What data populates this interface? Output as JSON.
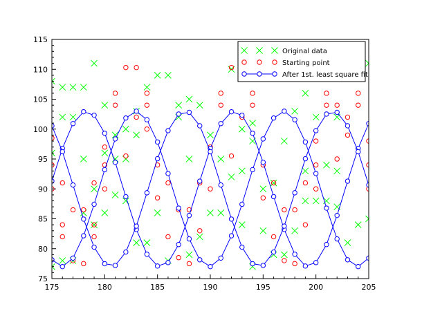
{
  "chart_data": {
    "type": "scatter",
    "xlim": [
      175,
      205
    ],
    "ylim": [
      75,
      115
    ],
    "x_ticks": [
      175,
      180,
      185,
      190,
      195,
      200,
      205
    ],
    "y_ticks": [
      75,
      80,
      85,
      90,
      95,
      100,
      105,
      110,
      115
    ],
    "grid": false,
    "legend_position": "top-right",
    "series": [
      {
        "name": "Original data",
        "marker": "cross",
        "color": "#00ff00",
        "points": [
          [
            175,
            77
          ],
          [
            175,
            96
          ],
          [
            175,
            108
          ],
          [
            176,
            102
          ],
          [
            176,
            107
          ],
          [
            176,
            78
          ],
          [
            177,
            102
          ],
          [
            177,
            107
          ],
          [
            177,
            78
          ],
          [
            178,
            107
          ],
          [
            178,
            95
          ],
          [
            178,
            86
          ],
          [
            179,
            111
          ],
          [
            179,
            90
          ],
          [
            179,
            84
          ],
          [
            180,
            104
          ],
          [
            180,
            96
          ],
          [
            180,
            86
          ],
          [
            181,
            99
          ],
          [
            181,
            95
          ],
          [
            181,
            89
          ],
          [
            182,
            100
          ],
          [
            182,
            95
          ],
          [
            182,
            88
          ],
          [
            183,
            81
          ],
          [
            183,
            99
          ],
          [
            183,
            103
          ],
          [
            184,
            107
          ],
          [
            184,
            81
          ],
          [
            185,
            109
          ],
          [
            185,
            86
          ],
          [
            186,
            109
          ],
          [
            186,
            78
          ],
          [
            187,
            102
          ],
          [
            187,
            104
          ],
          [
            188,
            105
          ],
          [
            188,
            95
          ],
          [
            188,
            79
          ],
          [
            189,
            104
          ],
          [
            189,
            82
          ],
          [
            190,
            99
          ],
          [
            190,
            86
          ],
          [
            191,
            95
          ],
          [
            191,
            86
          ],
          [
            192,
            92
          ],
          [
            192,
            110
          ],
          [
            193,
            100
          ],
          [
            193,
            93
          ],
          [
            193,
            84
          ],
          [
            194,
            101
          ],
          [
            194,
            98
          ],
          [
            194,
            77
          ],
          [
            195,
            90
          ],
          [
            195,
            83
          ],
          [
            196,
            91
          ],
          [
            196,
            79
          ],
          [
            197,
            98
          ],
          [
            197,
            79
          ],
          [
            198,
            103
          ],
          [
            198,
            83
          ],
          [
            199,
            106
          ],
          [
            199,
            93
          ],
          [
            199,
            88
          ],
          [
            200,
            102
          ],
          [
            200,
            88
          ],
          [
            201,
            94
          ],
          [
            201,
            88
          ],
          [
            202,
            102
          ],
          [
            202,
            93
          ],
          [
            202,
            87
          ],
          [
            203,
            81
          ],
          [
            204,
            84
          ],
          [
            205,
            85
          ],
          [
            205,
            111
          ]
        ]
      },
      {
        "name": "Starting point",
        "marker": "circle",
        "color": "#ff0000",
        "points": [
          [
            175,
            98.5
          ],
          [
            175,
            94
          ],
          [
            175,
            90
          ],
          [
            176,
            91
          ],
          [
            176,
            84
          ],
          [
            176,
            82
          ],
          [
            177,
            86.5
          ],
          [
            177,
            78
          ],
          [
            178,
            86.5
          ],
          [
            178,
            77.5
          ],
          [
            179,
            91
          ],
          [
            179,
            84
          ],
          [
            179,
            82
          ],
          [
            180,
            90
          ],
          [
            180,
            94
          ],
          [
            180,
            97
          ],
          [
            181,
            106
          ],
          [
            181,
            104
          ],
          [
            182,
            110.3
          ],
          [
            182,
            95.5
          ],
          [
            183,
            110.3
          ],
          [
            183,
            102
          ],
          [
            184,
            106
          ],
          [
            184,
            104
          ],
          [
            184,
            100
          ],
          [
            185,
            94
          ],
          [
            185,
            88.5
          ],
          [
            186,
            91
          ],
          [
            186,
            82
          ],
          [
            187,
            86.5
          ],
          [
            187,
            78.5
          ],
          [
            188,
            86.5
          ],
          [
            188,
            77.5
          ],
          [
            189,
            91
          ],
          [
            189,
            83
          ],
          [
            190,
            90
          ],
          [
            190,
            97
          ],
          [
            191,
            106
          ],
          [
            191,
            104
          ],
          [
            192,
            110.3
          ],
          [
            192,
            95.5
          ],
          [
            193,
            102
          ],
          [
            194,
            106
          ],
          [
            194,
            104
          ],
          [
            195,
            94
          ],
          [
            195,
            88.5
          ],
          [
            196,
            91
          ],
          [
            196,
            82
          ],
          [
            197,
            86.5
          ],
          [
            197,
            78
          ],
          [
            198,
            86.5
          ],
          [
            198,
            77.5
          ],
          [
            199,
            91
          ],
          [
            199,
            84
          ],
          [
            200,
            98
          ],
          [
            200,
            94
          ],
          [
            200,
            90
          ],
          [
            201,
            106
          ],
          [
            201,
            104
          ],
          [
            202,
            104
          ],
          [
            202,
            95
          ],
          [
            203,
            102
          ],
          [
            203,
            99
          ],
          [
            204,
            106
          ],
          [
            204,
            104
          ],
          [
            205,
            98
          ],
          [
            205,
            94
          ],
          [
            205,
            90
          ]
        ]
      },
      {
        "name": "After 1st. least square fit",
        "marker": "circle-line",
        "color": "#0000ff",
        "curves": [
          {
            "phase": 0.1
          },
          {
            "phase": 2.194
          },
          {
            "phase": 4.289
          }
        ]
      }
    ],
    "fit_model": {
      "center": 90,
      "amplitude": 13,
      "period": 14
    }
  }
}
